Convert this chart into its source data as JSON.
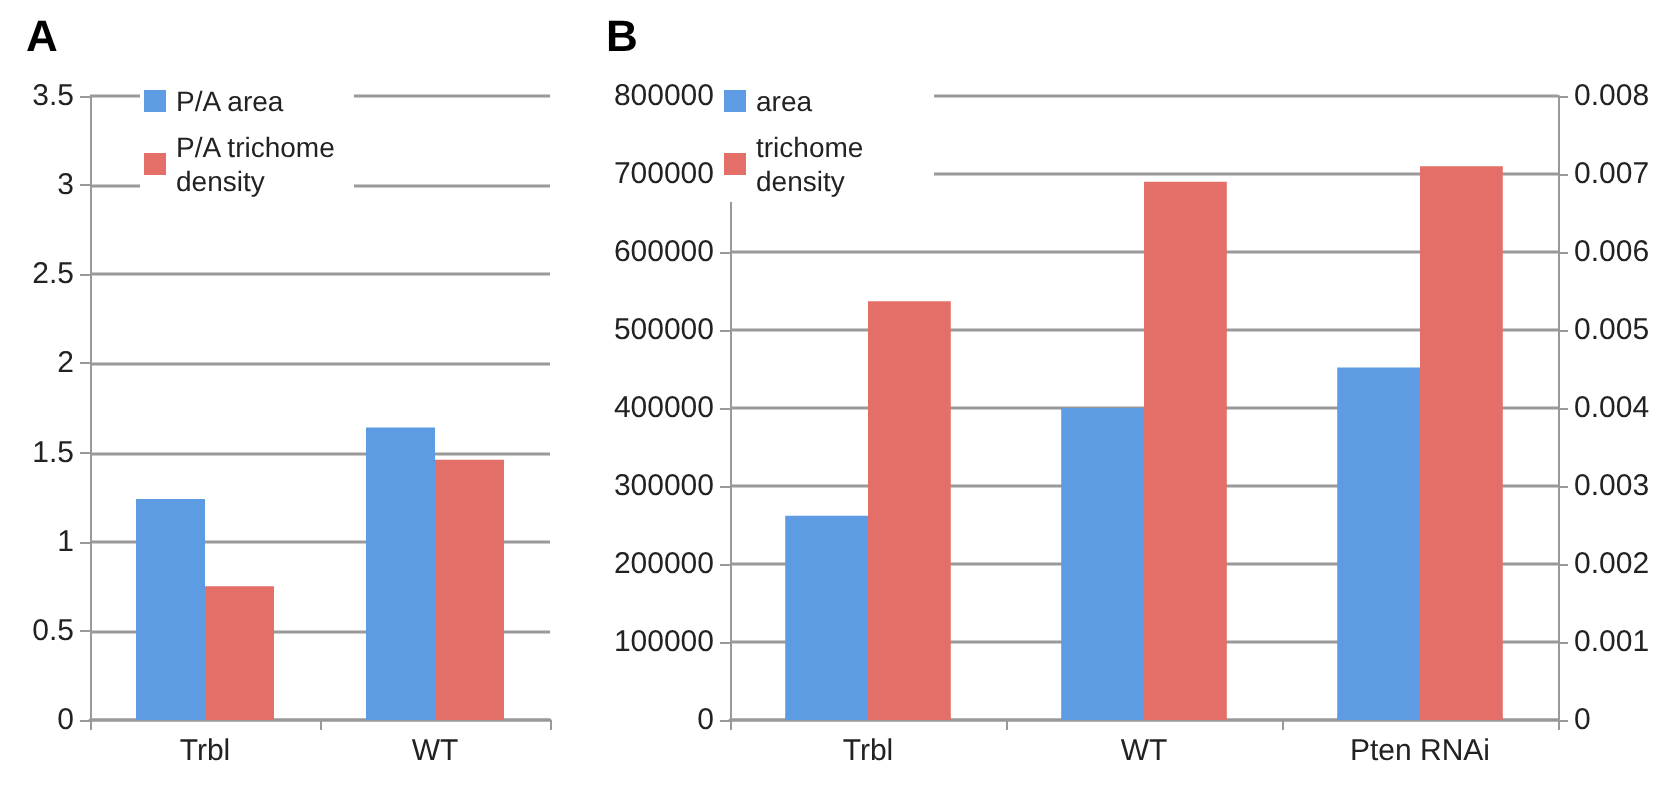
{
  "chart_data": [
    {
      "type": "bar",
      "title": "A",
      "categories": [
        "Trbl",
        "WT"
      ],
      "series": [
        {
          "name": "P/A area",
          "color": "#5d9ce3",
          "values": [
            1.24,
            1.64
          ]
        },
        {
          "name": "P/A trichome density",
          "color": "#e46f68",
          "values": [
            0.75,
            1.46
          ]
        }
      ],
      "ylim": [
        0,
        3.5
      ],
      "yticks": [
        0,
        0.5,
        1,
        1.5,
        2,
        2.5,
        3,
        3.5
      ],
      "grid": "y",
      "legend": "top left"
    },
    {
      "type": "bar",
      "title": "B",
      "categories": [
        "Trbl",
        "WT",
        "Pten RNAi"
      ],
      "series": [
        {
          "name": "area",
          "color": "#5d9ce3",
          "values": [
            262000,
            400000,
            452000
          ]
        },
        {
          "name": "trichome density",
          "color": "#e46f68",
          "values": [
            0.00537,
            0.0069,
            0.0071
          ],
          "axis": "y2"
        }
      ],
      "ylim": [
        0,
        800000
      ],
      "yticks": [
        0,
        100000,
        200000,
        300000,
        400000,
        500000,
        600000,
        700000,
        800000
      ],
      "y2lim": [
        0,
        0.008
      ],
      "y2ticks": [
        0,
        0.001,
        0.002,
        0.003,
        0.004,
        0.005,
        0.006,
        0.007,
        0.008
      ],
      "grid": "y",
      "legend": "top left"
    }
  ]
}
